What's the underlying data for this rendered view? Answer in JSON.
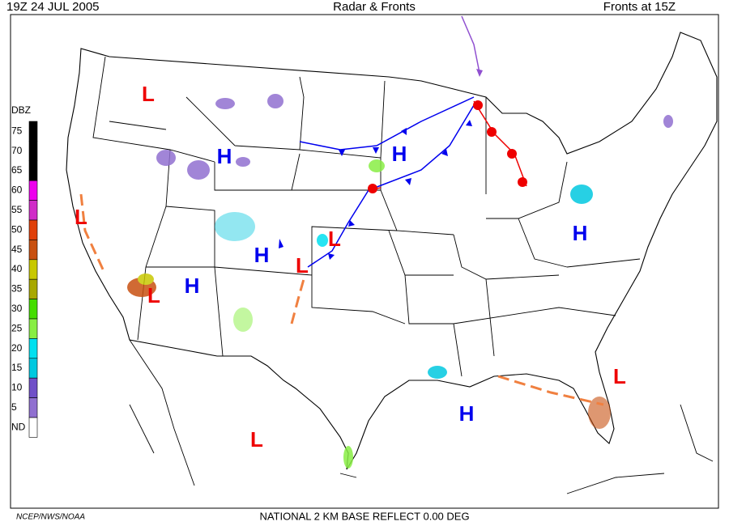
{
  "header": {
    "left": "19Z  24 JUL  2005",
    "center": "Radar & Fronts",
    "right": "Fronts at 15Z"
  },
  "legend": {
    "title": "DBZ",
    "entries": [
      {
        "label": "75",
        "color": "#000000"
      },
      {
        "label": "70",
        "color": "#000000"
      },
      {
        "label": "65",
        "color": "#000000"
      },
      {
        "label": "60",
        "color": "#ee00ee"
      },
      {
        "label": "55",
        "color": "#d02cc8"
      },
      {
        "label": "50",
        "color": "#e0400a"
      },
      {
        "label": "45",
        "color": "#c85010"
      },
      {
        "label": "40",
        "color": "#c8c800"
      },
      {
        "label": "35",
        "color": "#a8a800"
      },
      {
        "label": "30",
        "color": "#44dd00"
      },
      {
        "label": "25",
        "color": "#88ee44"
      },
      {
        "label": "20",
        "color": "#00e0f0"
      },
      {
        "label": "15",
        "color": "#00c8e0"
      },
      {
        "label": "10",
        "color": "#7050c8"
      },
      {
        "label": "5",
        "color": "#9070d0"
      },
      {
        "label": "ND",
        "color": "#ffffff"
      }
    ]
  },
  "pressure_centers": [
    {
      "label": "L",
      "color": "#ee0000"
    },
    {
      "label": "H",
      "color": "#0000ee"
    },
    {
      "label": "H",
      "color": "#0000ee"
    },
    {
      "label": "L",
      "color": "#ee0000"
    },
    {
      "label": "L",
      "color": "#ee0000"
    },
    {
      "label": "H",
      "color": "#0000ee"
    },
    {
      "label": "L",
      "color": "#ee0000"
    },
    {
      "label": "H",
      "color": "#0000ee"
    },
    {
      "label": "L",
      "color": "#ee0000"
    },
    {
      "label": "H",
      "color": "#0000ee"
    },
    {
      "label": "L",
      "color": "#ee0000"
    },
    {
      "label": "H",
      "color": "#0000ee"
    },
    {
      "label": "L",
      "color": "#ee0000"
    }
  ],
  "footer": {
    "credit": "NCEP/NWS/NOAA",
    "product": "NATIONAL 2 KM BASE REFLECT 0.00 DEG"
  }
}
